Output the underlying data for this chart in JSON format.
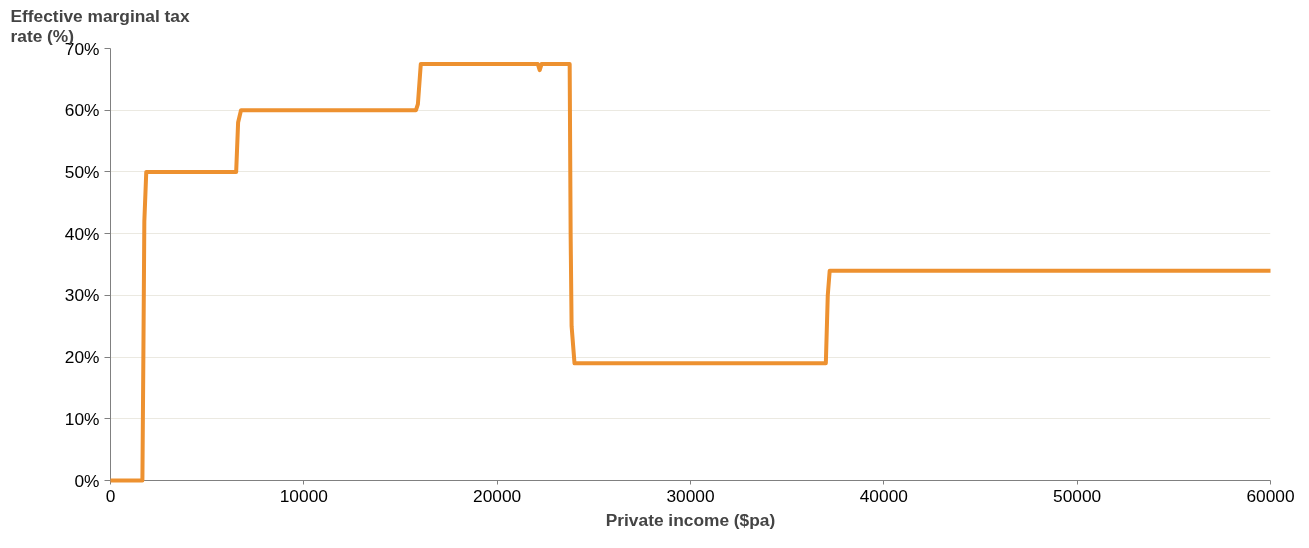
{
  "chart_data": {
    "type": "line",
    "xlabel": "Private income ($pa)",
    "ylabel": "Effective marginal tax rate (%)",
    "x": [
      0,
      1650,
      1700,
      1750,
      1850,
      6500,
      6600,
      6750,
      15800,
      15900,
      16050,
      22100,
      22200,
      22300,
      23750,
      23800,
      23850,
      24000,
      37000,
      37100,
      37200,
      60000
    ],
    "series": [
      {
        "color": "#ed9130",
        "values": [
          0,
          0,
          20,
          42,
          50,
          50,
          58,
          60,
          60,
          61,
          67.5,
          67.5,
          66.5,
          67.5,
          67.5,
          40,
          25,
          19,
          19,
          30,
          34,
          34
        ]
      }
    ],
    "xlim": [
      0,
      60000
    ],
    "ylim": [
      0,
      70
    ],
    "xticks": [
      0,
      10000,
      20000,
      30000,
      40000,
      50000,
      60000
    ],
    "yticks": [
      {
        "value": 0,
        "label": "0%"
      },
      {
        "value": 10,
        "label": "10%"
      },
      {
        "value": 20,
        "label": "20%"
      },
      {
        "value": 30,
        "label": "30%"
      },
      {
        "value": 40,
        "label": "40%"
      },
      {
        "value": 50,
        "label": "50%"
      },
      {
        "value": 60,
        "label": "60%"
      },
      {
        "value": 70,
        "label": "70%"
      }
    ],
    "grid": "y",
    "marker": "none",
    "line_style": "solid"
  }
}
